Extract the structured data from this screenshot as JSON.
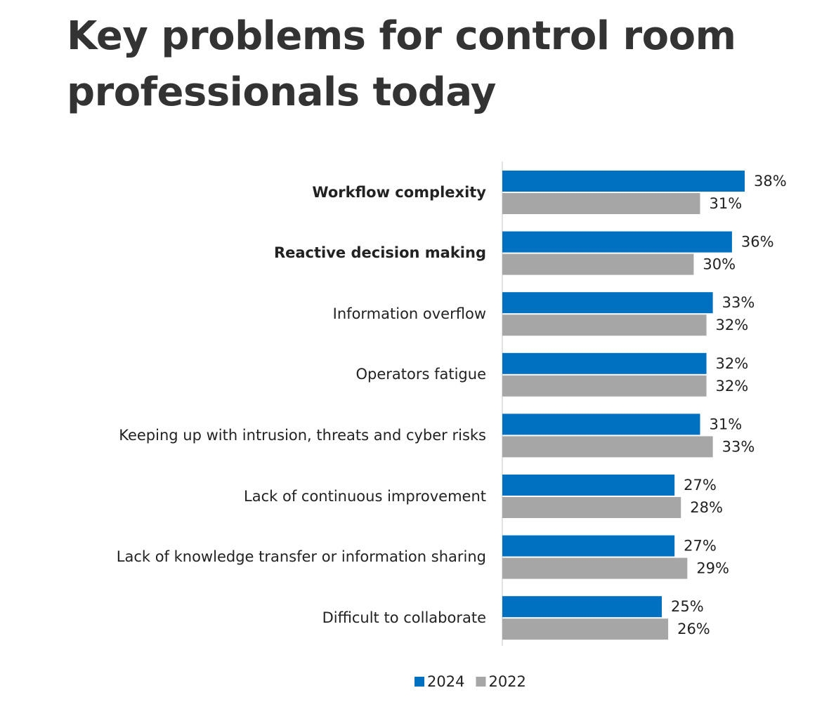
{
  "chart_data": {
    "type": "bar",
    "orientation": "horizontal",
    "title": "Key problems for control room professionals today",
    "categories": [
      "Workflow complexity",
      "Reactive decision making",
      "Information overflow",
      "Operators fatigue",
      "Keeping up with intrusion, threats and cyber risks",
      "Lack of continuous improvement",
      "Lack of knowledge transfer or information sharing",
      "Difficult to collaborate"
    ],
    "bold": [
      true,
      true,
      false,
      false,
      false,
      false,
      false,
      false
    ],
    "series": [
      {
        "name": "2024",
        "color": "#0070c0",
        "values": [
          38,
          36,
          33,
          32,
          31,
          27,
          27,
          25
        ],
        "value_labels": [
          "38%",
          "36%",
          "33%",
          "32%",
          "31%",
          "27%",
          "27%",
          "25%"
        ]
      },
      {
        "name": "2022",
        "color": "#a6a6a6",
        "values": [
          31,
          30,
          32,
          32,
          33,
          28,
          29,
          26
        ],
        "value_labels": [
          "31%",
          "30%",
          "32%",
          "32%",
          "33%",
          "28%",
          "29%",
          "26%"
        ]
      }
    ],
    "legend": "bottom"
  }
}
